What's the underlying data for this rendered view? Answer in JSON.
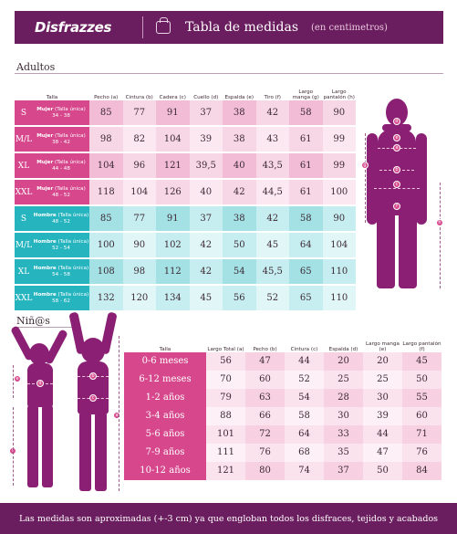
{
  "header": {
    "brand": "Disfrazzes",
    "title": "Tabla de medidas",
    "subtitle": "(en centimetros)"
  },
  "adults": {
    "section_title": "Adultos",
    "columns": [
      "Talla",
      "Pecho (a)",
      "Cintura (b)",
      "Cadera (c)",
      "Cuello (d)",
      "Espalda (e)",
      "Tiro (f)",
      "Largo manga (g)",
      "Largo pantalón (h)"
    ],
    "rows": [
      {
        "size": "S",
        "type": "Mujer",
        "detail": "(Talla única)",
        "range": "34 - 38",
        "values": [
          "85",
          "77",
          "91",
          "37",
          "38",
          "42",
          "58",
          "90"
        ]
      },
      {
        "size": "M/L",
        "type": "Mujer",
        "detail": "(Talla única)",
        "range": "38 - 42",
        "values": [
          "98",
          "82",
          "104",
          "39",
          "38",
          "43",
          "61",
          "99"
        ]
      },
      {
        "size": "XL",
        "type": "Mujer",
        "detail": "(Talla única)",
        "range": "44 - 48",
        "values": [
          "104",
          "96",
          "121",
          "39,5",
          "40",
          "43,5",
          "61",
          "99"
        ]
      },
      {
        "size": "XXL",
        "type": "Mujer",
        "detail": "(Talla única)",
        "range": "48 - 52",
        "values": [
          "118",
          "104",
          "126",
          "40",
          "42",
          "44,5",
          "61",
          "100"
        ]
      },
      {
        "size": "S",
        "type": "Hombre",
        "detail": "(Talla única)",
        "range": "48 - 52",
        "values": [
          "85",
          "77",
          "91",
          "37",
          "38",
          "42",
          "58",
          "90"
        ]
      },
      {
        "size": "M/L",
        "type": "Hombre",
        "detail": "(Talla única)",
        "range": "52 - 54",
        "values": [
          "100",
          "90",
          "102",
          "42",
          "50",
          "45",
          "64",
          "104"
        ]
      },
      {
        "size": "XL",
        "type": "Hombre",
        "detail": "(Talla única)",
        "range": "54 - 58",
        "values": [
          "108",
          "98",
          "112",
          "42",
          "54",
          "45,5",
          "65",
          "110"
        ]
      },
      {
        "size": "XXL",
        "type": "Hombre",
        "detail": "(Talla única)",
        "range": "58 - 62",
        "values": [
          "132",
          "120",
          "134",
          "45",
          "56",
          "52",
          "65",
          "110"
        ]
      }
    ]
  },
  "kids": {
    "section_title": "Niñ@s",
    "columns": [
      "Talla",
      "Largo Total (a)",
      "Pecho (b)",
      "Cintura (c)",
      "Espalda (d)",
      "Largo manga (e)",
      "Largo pantalón (f)"
    ],
    "rows": [
      {
        "label": "0-6 meses",
        "values": [
          "56",
          "47",
          "44",
          "20",
          "20",
          "45"
        ]
      },
      {
        "label": "6-12 meses",
        "values": [
          "70",
          "60",
          "52",
          "25",
          "25",
          "50"
        ]
      },
      {
        "label": "1-2 años",
        "values": [
          "79",
          "63",
          "54",
          "28",
          "30",
          "55"
        ]
      },
      {
        "label": "3-4 años",
        "values": [
          "88",
          "66",
          "58",
          "30",
          "39",
          "60"
        ]
      },
      {
        "label": "5-6 años",
        "values": [
          "101",
          "72",
          "64",
          "33",
          "44",
          "71"
        ]
      },
      {
        "label": "7-9 años",
        "values": [
          "111",
          "76",
          "68",
          "35",
          "47",
          "76"
        ]
      },
      {
        "label": "10-12 años",
        "values": [
          "121",
          "80",
          "74",
          "37",
          "50",
          "84"
        ]
      }
    ]
  },
  "figure_labels": {
    "adult": [
      "a",
      "b",
      "c",
      "d",
      "e",
      "f",
      "g",
      "h"
    ],
    "kids": [
      "a",
      "b",
      "c",
      "d",
      "e",
      "f"
    ]
  },
  "footer": {
    "note": "Las medidas son aproximadas (+-3 cm) ya que engloban todos los disfraces, tejidos y acabados"
  },
  "colors": {
    "brand": "#6b1e5f",
    "pink": "#d6478c",
    "cyan": "#26b5bf",
    "silhouette": "#8a1f74"
  }
}
